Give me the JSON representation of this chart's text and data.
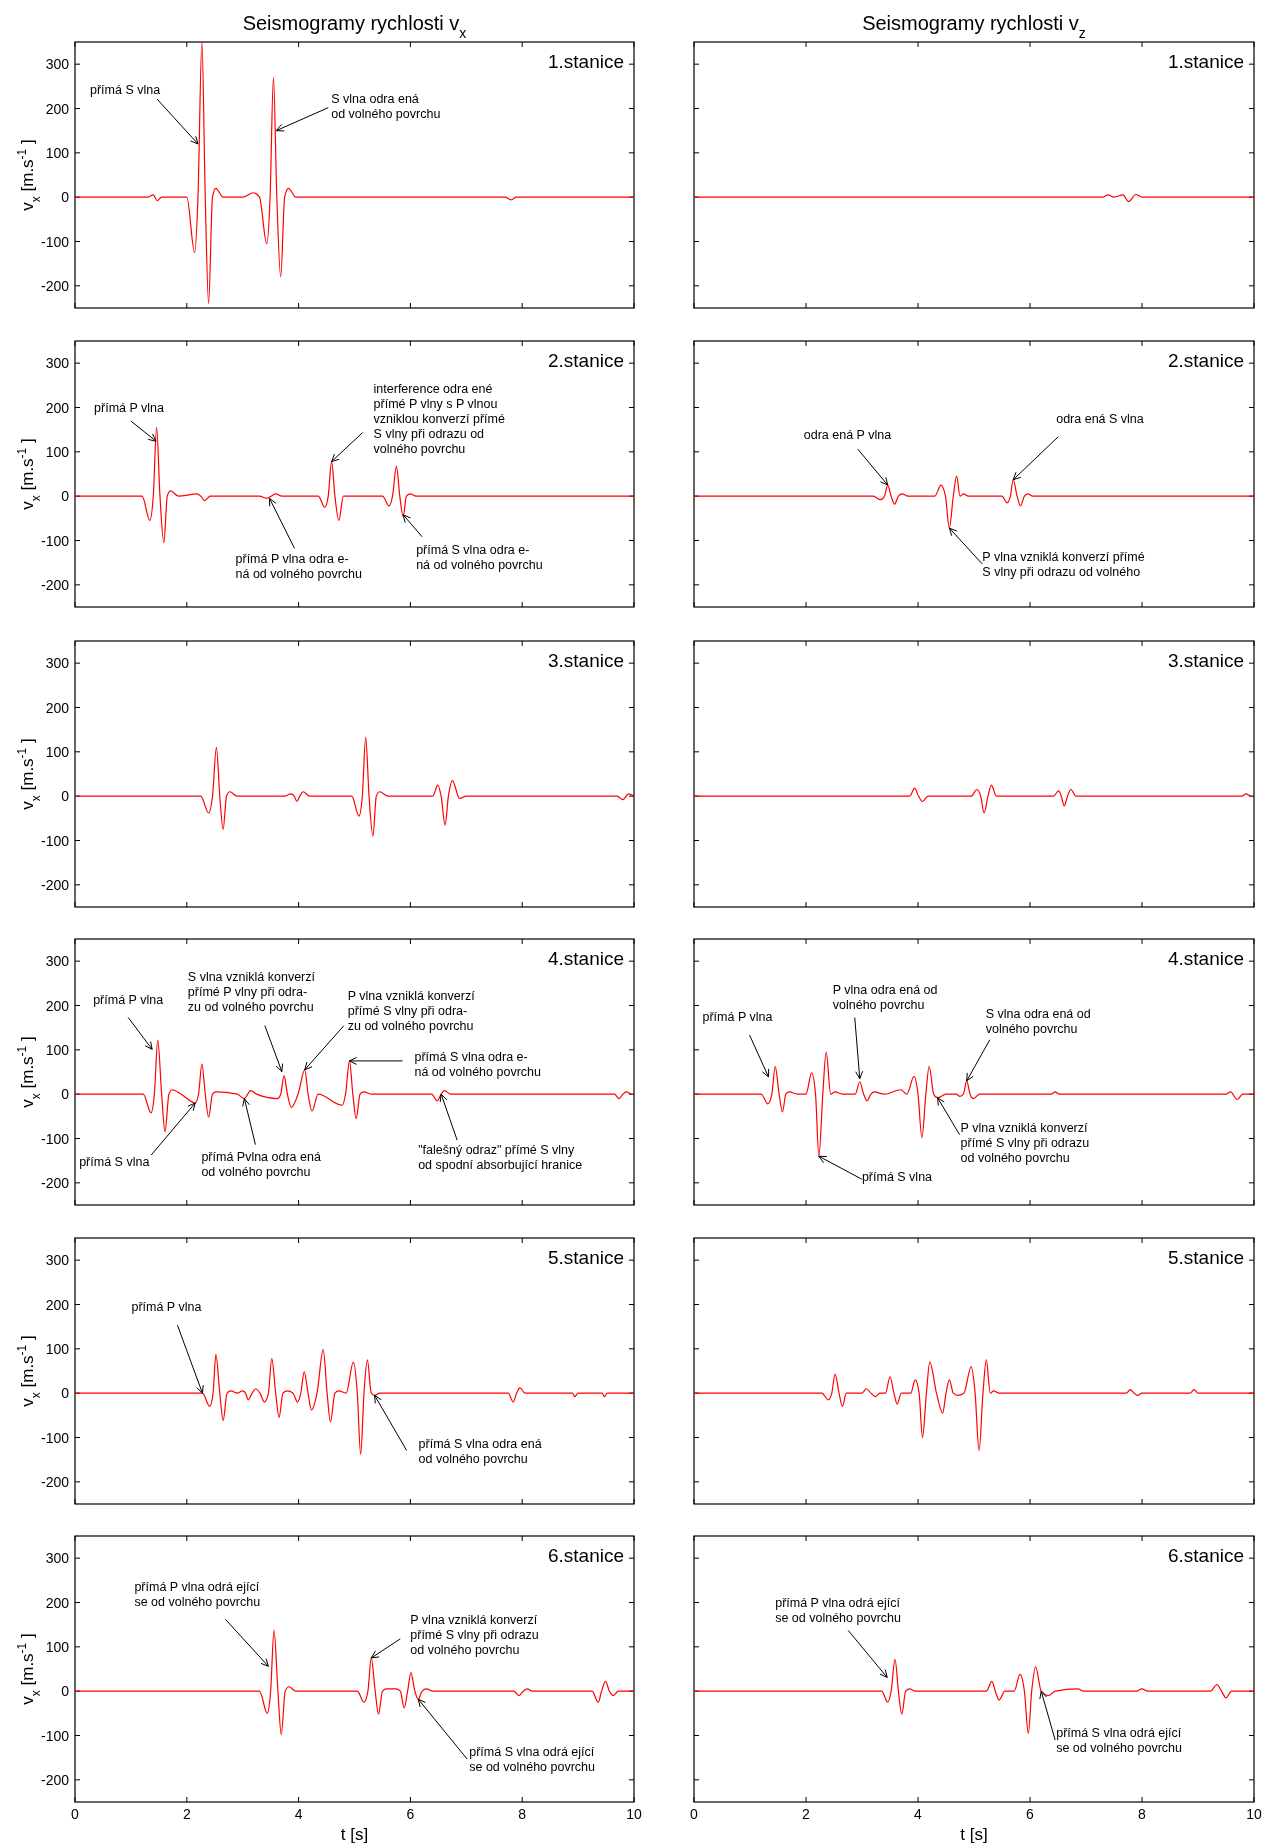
{
  "chart_data": [
    {
      "type": "line",
      "title": "Seismogramy rychlosti v$_{x}$",
      "ylabel": "v$_{x}$ [m.s$^{-1}$]",
      "xlim": [
        0,
        10
      ],
      "xticks": [
        0,
        2,
        4,
        6,
        8,
        10
      ],
      "ylim": [
        -250,
        350
      ],
      "yticks": [
        -200,
        -100,
        0,
        100,
        200,
        300
      ],
      "tick_labels": "y",
      "series": [
        {
          "color": "#ff0000",
          "x": [
            0,
            1.3,
            1.4,
            1.47,
            1.55,
            2.0,
            2.14,
            2.2,
            2.27,
            2.33,
            2.39,
            2.46,
            2.52,
            2.65,
            3.0,
            3.19,
            3.3,
            3.43,
            3.49,
            3.55,
            3.61,
            3.68,
            3.75,
            3.82,
            3.95,
            7.7,
            7.8,
            7.9,
            10
          ],
          "values": [
            0,
            0,
            5,
            -8,
            0,
            0,
            -125,
            0,
            350,
            0,
            -240,
            0,
            20,
            0,
            0,
            10,
            0,
            -105,
            0,
            270,
            0,
            -180,
            0,
            20,
            0,
            0,
            -6,
            0,
            0
          ]
        }
      ],
      "annotations": [
        "1.stanice",
        {
          "text": "přímá S vlna",
          "x": 2.2,
          "y": 120
        },
        {
          "text": "S vlna odra ená\nod volného povrchu",
          "x": 3.6,
          "y": 150
        }
      ]
    },
    {
      "type": "line",
      "title": "Seismogramy rychlosti v$_{z}$",
      "xlim": [
        0,
        10
      ],
      "xticks": [
        0,
        2,
        4,
        6,
        8,
        10
      ],
      "ylim": [
        -250,
        350
      ],
      "yticks": [
        -200,
        -100,
        0,
        100,
        200,
        300
      ],
      "tick_labels": false,
      "series": [
        {
          "color": "#ff0000",
          "x": [
            0,
            7.3,
            7.39,
            7.5,
            7.66,
            7.76,
            7.89,
            8.0,
            10
          ],
          "values": [
            0,
            0,
            5,
            0,
            5,
            -10,
            6,
            0,
            0
          ]
        }
      ],
      "annotations": [
        "1.stanice"
      ]
    },
    {
      "type": "line",
      "ylabel": "v$_{x}$ [m.s$^{-1}$]",
      "xlim": [
        0,
        10
      ],
      "xticks": [
        0,
        2,
        4,
        6,
        8,
        10
      ],
      "ylim": [
        -250,
        350
      ],
      "yticks": [
        -200,
        -100,
        0,
        100,
        200,
        300
      ],
      "tick_labels": "y",
      "series": [
        {
          "color": "#ff0000",
          "x": [
            0,
            1.2,
            1.34,
            1.4,
            1.46,
            1.52,
            1.59,
            1.65,
            1.71,
            1.85,
            2.18,
            2.25,
            2.32,
            2.42,
            3.3,
            3.43,
            3.51,
            3.59,
            3.7,
            4.35,
            4.47,
            4.53,
            4.59,
            4.65,
            4.72,
            4.8,
            5.5,
            5.62,
            5.68,
            5.75,
            5.81,
            5.87,
            5.93,
            6.0,
            6.1,
            10
          ],
          "values": [
            0,
            0,
            -55,
            0,
            155,
            0,
            -105,
            0,
            12,
            0,
            5,
            0,
            -10,
            0,
            0,
            -5,
            0,
            5,
            0,
            0,
            -25,
            0,
            78,
            0,
            -55,
            0,
            0,
            -22,
            0,
            67,
            0,
            -45,
            0,
            5,
            0,
            0
          ]
        }
      ],
      "annotations": [
        "2.stanice",
        {
          "text": "přímá P vlna",
          "x": 1.45,
          "y": 124
        },
        {
          "text": "interference odra ené\npřímé P vlny s P vlnou\nvzniklou konverzí přímé\nS vlny při odrazu od\nvolného povrchu",
          "x": 4.59,
          "y": 78
        },
        {
          "text": "přímá P vlna odra e-\nná od volného povrchu",
          "x": 3.48,
          "y": -5
        },
        {
          "text": "přímá S vlna odra e-\nná od volného povrchu",
          "x": 5.87,
          "y": -42
        }
      ]
    },
    {
      "type": "line",
      "xlim": [
        0,
        10
      ],
      "xticks": [
        0,
        2,
        4,
        6,
        8,
        10
      ],
      "ylim": [
        -250,
        350
      ],
      "yticks": [
        -200,
        -100,
        0,
        100,
        200,
        300
      ],
      "tick_labels": false,
      "series": [
        {
          "color": "#ff0000",
          "x": [
            0,
            3.2,
            3.33,
            3.4,
            3.46,
            3.52,
            3.58,
            3.65,
            3.72,
            3.82,
            4.3,
            4.41,
            4.49,
            4.56,
            4.63,
            4.69,
            4.75,
            4.81,
            4.9,
            5.5,
            5.59,
            5.65,
            5.7,
            5.77,
            5.83,
            5.9,
            5.96,
            6.05,
            10
          ],
          "values": [
            0,
            0,
            -8,
            0,
            25,
            0,
            -18,
            0,
            5,
            0,
            0,
            25,
            0,
            -72,
            0,
            45,
            0,
            5,
            0,
            0,
            -15,
            0,
            37,
            0,
            -22,
            0,
            5,
            0,
            0
          ]
        }
      ],
      "annotations": [
        "2.stanice",
        {
          "text": "odra ená P vlna",
          "x": 3.46,
          "y": 25
        },
        {
          "text": "odra ená S vlna",
          "x": 5.7,
          "y": 37
        },
        {
          "text": "P vlna vzniklá konverzí přímé\nS vlny při odrazu od volného",
          "x": 4.56,
          "y": -72
        }
      ]
    },
    {
      "type": "line",
      "ylabel": "v$_{x}$ [m.s$^{-1}$]",
      "xlim": [
        0,
        10
      ],
      "xticks": [
        0,
        2,
        4,
        6,
        8,
        10
      ],
      "ylim": [
        -250,
        350
      ],
      "yticks": [
        -200,
        -100,
        0,
        100,
        200,
        300
      ],
      "tick_labels": "y",
      "series": [
        {
          "color": "#ff0000",
          "x": [
            0,
            2.25,
            2.39,
            2.46,
            2.53,
            2.59,
            2.65,
            2.71,
            2.77,
            2.9,
            3.75,
            3.86,
            3.92,
            3.97,
            4.02,
            4.08,
            4.2,
            4.95,
            5.08,
            5.14,
            5.2,
            5.26,
            5.33,
            5.39,
            5.45,
            5.6,
            6.4,
            6.49,
            6.55,
            6.62,
            6.68,
            6.75,
            6.88,
            7.0,
            9.7,
            9.8,
            9.9,
            10
          ],
          "values": [
            0,
            0,
            -38,
            0,
            110,
            0,
            -75,
            0,
            10,
            0,
            0,
            5,
            0,
            -12,
            0,
            10,
            0,
            0,
            -45,
            0,
            133,
            0,
            -90,
            0,
            10,
            0,
            0,
            25,
            0,
            -65,
            0,
            35,
            -5,
            0,
            0,
            -8,
            5,
            0
          ]
        }
      ],
      "annotations": [
        "3.stanice"
      ]
    },
    {
      "type": "line",
      "xlim": [
        0,
        10
      ],
      "xticks": [
        0,
        2,
        4,
        6,
        8,
        10
      ],
      "ylim": [
        -250,
        350
      ],
      "yticks": [
        -200,
        -100,
        0,
        100,
        200,
        300
      ],
      "tick_labels": false,
      "series": [
        {
          "color": "#ff0000",
          "x": [
            0,
            3.85,
            3.94,
            4.01,
            4.08,
            4.18,
            4.95,
            5.05,
            5.12,
            5.18,
            5.25,
            5.31,
            5.4,
            6.42,
            6.51,
            6.56,
            6.61,
            6.67,
            6.73,
            6.82,
            9.78,
            9.86,
            9.94,
            9.97
          ],
          "values": [
            0,
            0,
            18,
            0,
            -12,
            0,
            0,
            15,
            0,
            -38,
            0,
            25,
            0,
            0,
            12,
            0,
            -22,
            0,
            15,
            0,
            0,
            5,
            0,
            0
          ]
        }
      ],
      "annotations": [
        "3.stanice"
      ]
    },
    {
      "type": "line",
      "ylabel": "v$_{x}$ [m.s$^{-1}$]",
      "xlim": [
        0,
        10
      ],
      "xticks": [
        0,
        2,
        4,
        6,
        8,
        10
      ],
      "ylim": [
        -250,
        350
      ],
      "yticks": [
        -200,
        -100,
        0,
        100,
        200,
        300
      ],
      "tick_labels": "y",
      "series": [
        {
          "color": "#ff0000",
          "x": [
            0,
            1.22,
            1.36,
            1.42,
            1.48,
            1.55,
            1.61,
            1.68,
            1.74,
            1.9,
            2.15,
            2.21,
            2.27,
            2.33,
            2.39,
            2.46,
            2.52,
            2.9,
            3.03,
            3.09,
            3.14,
            3.25,
            3.62,
            3.68,
            3.74,
            3.8,
            3.87,
            3.99,
            4.11,
            4.17,
            4.24,
            4.35,
            4.78,
            4.84,
            4.91,
            4.97,
            5.03,
            5.1,
            5.17,
            5.3,
            6.38,
            6.48,
            6.55,
            6.61,
            6.72,
            9.65,
            9.73,
            9.8,
            9.87,
            9.95,
            9.97
          ],
          "values": [
            0,
            0,
            -42,
            0,
            122,
            0,
            -85,
            0,
            10,
            0,
            -20,
            0,
            68,
            0,
            -52,
            0,
            5,
            0,
            -10,
            0,
            8,
            0,
            -10,
            0,
            42,
            0,
            -30,
            0,
            55,
            0,
            -38,
            0,
            -25,
            0,
            75,
            0,
            -55,
            0,
            5,
            0,
            0,
            -15,
            0,
            8,
            0,
            0,
            -10,
            0,
            5,
            0,
            0
          ]
        }
      ],
      "annotations": [
        "4.stanice",
        {
          "text": "přímá P vlna",
          "x": 1.38,
          "y": 101
        },
        {
          "text": "S vlna vzniklá konverzí\npřímé P vlny při odra-\nzu od volného povrchu",
          "x": 3.7,
          "y": 51
        },
        {
          "text": "P vlna vzniklá konverzí\npřímé S vlny při odra-\nzu od volného povrchu",
          "x": 4.11,
          "y": 55
        },
        {
          "text": "přímá S vlna odra e-\nná od volného povrchu",
          "x": 4.91,
          "y": 75
        },
        {
          "text": "\"falešný odraz\" přímé S vlny\nod spodní absorbující hranice",
          "x": 6.55,
          "y": 0
        },
        {
          "text": "přímá Pvlna odra ená\nod volného povrchu",
          "x": 3.03,
          "y": -10
        },
        {
          "text": "přímá S vlna",
          "x": 2.15,
          "y": -20
        }
      ]
    },
    {
      "type": "line",
      "xlim": [
        0,
        10
      ],
      "xticks": [
        0,
        2,
        4,
        6,
        8,
        10
      ],
      "ylim": [
        -250,
        350
      ],
      "yticks": [
        -200,
        -100,
        0,
        100,
        200,
        300
      ],
      "tick_labels": false,
      "series": [
        {
          "color": "#ff0000",
          "x": [
            0,
            1.2,
            1.32,
            1.39,
            1.45,
            1.52,
            1.58,
            1.64,
            1.7,
            1.85,
            2.0,
            2.1,
            2.17,
            2.23,
            2.3,
            2.36,
            2.44,
            2.52,
            2.65,
            2.88,
            2.96,
            3.03,
            3.09,
            3.16,
            3.22,
            3.4,
            3.69,
            3.8,
            3.93,
            4.0,
            4.07,
            4.14,
            4.2,
            4.28,
            4.35,
            4.5,
            4.68,
            4.75,
            4.81,
            4.87,
            4.93,
            4.99,
            5.1,
            6.38,
            6.45,
            6.52,
            9.5,
            9.58,
            9.7,
            9.8,
            10
          ],
          "values": [
            0,
            0,
            -22,
            0,
            62,
            0,
            -40,
            0,
            5,
            0,
            0,
            48,
            0,
            -140,
            0,
            95,
            0,
            5,
            0,
            0,
            28,
            0,
            -15,
            0,
            5,
            0,
            10,
            0,
            40,
            0,
            -98,
            0,
            63,
            0,
            -8,
            0,
            0,
            -5,
            0,
            30,
            0,
            -10,
            0,
            0,
            5,
            0,
            0,
            5,
            -12,
            0,
            0
          ]
        }
      ],
      "annotations": [
        "4.stanice",
        {
          "text": "přímá P vlna",
          "x": 1.33,
          "y": 39
        },
        {
          "text": "P vlna odra ená od\nvolného povrchu",
          "x": 2.96,
          "y": 35
        },
        {
          "text": "S vlna odra ená od\nvolného povrchu",
          "x": 4.87,
          "y": 30
        },
        {
          "text": "P vlna vzniklá konverzí\npřímé S vlny při odrazu\nod volného povrchu",
          "x": 4.35,
          "y": -8
        },
        {
          "text": "přímá S vlna",
          "x": 2.23,
          "y": -140
        }
      ]
    },
    {
      "type": "line",
      "ylabel": "v$_{x}$ [m.s$^{-1}$]",
      "xlim": [
        0,
        10
      ],
      "xticks": [
        0,
        2,
        4,
        6,
        8,
        10
      ],
      "ylim": [
        -250,
        350
      ],
      "yticks": [
        -200,
        -100,
        0,
        100,
        200,
        300
      ],
      "tick_labels": "y",
      "series": [
        {
          "color": "#ff0000",
          "x": [
            0,
            2.28,
            2.41,
            2.47,
            2.52,
            2.59,
            2.65,
            2.72,
            2.79,
            2.9,
            3.0,
            3.05,
            3.1,
            3.17,
            3.23,
            3.31,
            3.39,
            3.46,
            3.52,
            3.59,
            3.65,
            3.72,
            3.8,
            3.9,
            3.98,
            4.04,
            4.1,
            4.17,
            4.23,
            4.33,
            4.44,
            4.51,
            4.57,
            4.65,
            4.72,
            4.85,
            4.98,
            5.05,
            5.11,
            5.17,
            5.23,
            5.3,
            5.36,
            5.45,
            7.75,
            7.84,
            7.9,
            7.96,
            8.05,
            8.9,
            8.94,
            9.0,
            9.43,
            9.47,
            9.52,
            10
          ],
          "values": [
            0,
            0,
            -30,
            0,
            87,
            0,
            -62,
            0,
            5,
            0,
            5,
            0,
            -15,
            0,
            10,
            0,
            -20,
            0,
            78,
            0,
            -55,
            0,
            5,
            0,
            -20,
            0,
            48,
            0,
            -38,
            0,
            98,
            0,
            -65,
            0,
            5,
            0,
            70,
            0,
            -138,
            0,
            75,
            0,
            -5,
            0,
            0,
            -20,
            0,
            12,
            0,
            0,
            -8,
            0,
            0,
            -8,
            0,
            0
          ]
        }
      ],
      "annotations": [
        "5.stanice",
        {
          "text": "přímá P vlna",
          "x": 2.28,
          "y": 0
        },
        {
          "text": "přímá S vlna odra ená\nod volného povrchu",
          "x": 5.36,
          "y": -5
        }
      ]
    },
    {
      "type": "line",
      "xlim": [
        0,
        10
      ],
      "xticks": [
        0,
        2,
        4,
        6,
        8,
        10
      ],
      "ylim": [
        -250,
        350
      ],
      "yticks": [
        -200,
        -100,
        0,
        100,
        200,
        300
      ],
      "tick_labels": false,
      "series": [
        {
          "color": "#ff0000",
          "x": [
            0,
            2.28,
            2.4,
            2.46,
            2.52,
            2.59,
            2.65,
            2.72,
            2.85,
            3.0,
            3.08,
            3.16,
            3.24,
            3.32,
            3.42,
            3.5,
            3.57,
            3.63,
            3.7,
            3.87,
            3.95,
            4.02,
            4.08,
            4.15,
            4.21,
            4.33,
            4.44,
            4.5,
            4.56,
            4.63,
            4.71,
            4.82,
            4.95,
            5.02,
            5.09,
            5.16,
            5.22,
            5.29,
            5.35,
            5.45,
            7.72,
            7.79,
            7.86,
            7.92,
            8.0,
            8.86,
            8.93,
            9.0,
            10
          ],
          "values": [
            0,
            0,
            -15,
            0,
            43,
            0,
            -30,
            0,
            0,
            0,
            10,
            0,
            -8,
            0,
            0,
            37,
            0,
            -25,
            0,
            0,
            30,
            0,
            -100,
            0,
            70,
            0,
            -45,
            0,
            30,
            0,
            -5,
            0,
            60,
            0,
            -130,
            0,
            75,
            0,
            5,
            0,
            0,
            8,
            0,
            -5,
            0,
            0,
            8,
            0,
            0
          ]
        }
      ],
      "annotations": [
        "5.stanice"
      ]
    },
    {
      "type": "line",
      "ylabel": "v$_{x}$ [m.s$^{-1}$]",
      "xlabel": "t [s]",
      "xlim": [
        0,
        10
      ],
      "xticks": [
        0,
        2,
        4,
        6,
        8,
        10
      ],
      "ylim": [
        -250,
        350
      ],
      "yticks": [
        -200,
        -100,
        0,
        100,
        200,
        300
      ],
      "series": [
        {
          "color": "#ff0000",
          "x": [
            0,
            3.3,
            3.44,
            3.5,
            3.56,
            3.63,
            3.69,
            3.76,
            3.83,
            3.95,
            5.05,
            5.17,
            5.24,
            5.3,
            5.37,
            5.43,
            5.5,
            5.57,
            5.74,
            5.82,
            5.89,
            5.95,
            6.01,
            6.08,
            6.14,
            6.21,
            6.29,
            6.4,
            7.85,
            7.94,
            8.02,
            8.09,
            8.18,
            9.25,
            9.36,
            9.42,
            9.49,
            9.56,
            9.63,
            9.72,
            10
          ],
          "values": [
            0,
            0,
            -50,
            0,
            138,
            0,
            -98,
            0,
            10,
            0,
            0,
            -25,
            0,
            75,
            0,
            -52,
            0,
            5,
            5,
            0,
            -38,
            0,
            42,
            0,
            -18,
            0,
            5,
            0,
            0,
            -10,
            0,
            5,
            0,
            0,
            -25,
            0,
            22,
            0,
            -10,
            0,
            0
          ]
        }
      ],
      "annotations": [
        "6.stanice",
        {
          "text": "přímá P vlna odrá ející\nse od volného povrchu",
          "x": 3.46,
          "y": 56
        },
        {
          "text": "P vlna vzniklá konverzí\npřímé S vlny při odrazu\nod volného povrchu",
          "x": 5.3,
          "y": 75
        },
        {
          "text": "přímá S vlna odrá ející\nse od volného povrchu",
          "x": 6.14,
          "y": -18
        }
      ]
    },
    {
      "type": "line",
      "xlabel": "t [s]",
      "xlim": [
        0,
        10
      ],
      "xticks": [
        0,
        2,
        4,
        6,
        8,
        10
      ],
      "ylim": [
        -250,
        350
      ],
      "yticks": [
        -200,
        -100,
        0,
        100,
        200,
        300
      ],
      "tick_labels": "x",
      "series": [
        {
          "color": "#ff0000",
          "x": [
            0,
            3.35,
            3.46,
            3.52,
            3.59,
            3.65,
            3.71,
            3.78,
            3.85,
            3.95,
            5.22,
            5.32,
            5.38,
            5.45,
            5.55,
            5.72,
            5.82,
            5.9,
            5.97,
            6.03,
            6.1,
            6.2,
            6.33,
            6.45,
            6.86,
            6.95,
            7.9,
            8.0,
            8.1,
            9.22,
            9.34,
            9.42,
            9.5,
            9.6,
            10
          ],
          "values": [
            0,
            0,
            -25,
            0,
            72,
            0,
            -52,
            0,
            5,
            0,
            0,
            22,
            0,
            -20,
            0,
            0,
            38,
            0,
            -95,
            0,
            55,
            0,
            -10,
            0,
            5,
            0,
            0,
            5,
            0,
            0,
            15,
            0,
            -15,
            0,
            0
          ]
        }
      ],
      "annotations": [
        "6.stanice",
        {
          "text": "přímá P vlna odrá ející\nse od volného povrchu",
          "x": 3.45,
          "y": 31
        },
        {
          "text": "přímá S vlna odrá ející\nse od volného povrchu",
          "x": 6.2,
          "y": 0
        }
      ]
    }
  ]
}
